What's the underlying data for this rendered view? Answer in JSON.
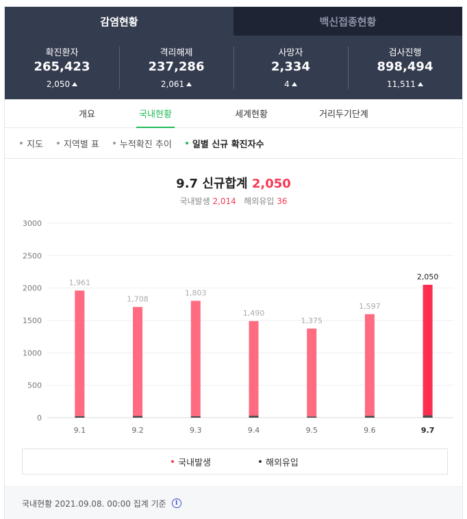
{
  "top_tabs": [
    {
      "label": "감염현황",
      "active": true
    },
    {
      "label": "백신접종현황",
      "active": false
    }
  ],
  "stats": [
    {
      "label": "확진환자",
      "value": "265,423",
      "delta": "2,050"
    },
    {
      "label": "격리해제",
      "value": "237,286",
      "delta": "2,061"
    },
    {
      "label": "사망자",
      "value": "2,334",
      "delta": "4"
    },
    {
      "label": "검사진행",
      "value": "898,494",
      "delta": "11,511"
    }
  ],
  "sub_tabs": [
    {
      "label": "개요"
    },
    {
      "label": "국내현황",
      "active": true
    },
    {
      "label": "세계현황"
    },
    {
      "label": "거리두기단계"
    }
  ],
  "filters": [
    {
      "label": "지도"
    },
    {
      "label": "지역별 표"
    },
    {
      "label": "누적확진 추이"
    },
    {
      "label": "일별 신규 확진자수",
      "active": true
    }
  ],
  "summary": {
    "date": "9.7",
    "title_label": "신규합계",
    "total": "2,050",
    "domestic_label": "국내발생",
    "domestic_value": "2,014",
    "overseas_label": "해외유입",
    "overseas_value": "36"
  },
  "chart_data": {
    "type": "bar",
    "categories": [
      "9.1",
      "9.2",
      "9.3",
      "9.4",
      "9.5",
      "9.6",
      "9.7"
    ],
    "values": [
      1961,
      1708,
      1803,
      1490,
      1375,
      1597,
      2050
    ],
    "value_labels": [
      "1,961",
      "1,708",
      "1,803",
      "1,490",
      "1,375",
      "1,597",
      "2,050"
    ],
    "series": [
      {
        "name": "국내발생",
        "values": [
          1937,
          1682,
          1781,
          1460,
          1357,
          1570,
          2014
        ],
        "color": "#ff6b81"
      },
      {
        "name": "해외유입",
        "values": [
          24,
          26,
          22,
          30,
          18,
          27,
          36
        ],
        "color": "#4a4a4a"
      }
    ],
    "y_ticks": [
      0,
      500,
      1000,
      1500,
      2000,
      2500,
      3000
    ],
    "ylim": [
      0,
      3000
    ],
    "highlight_index": 6,
    "highlight_color": "#ff2d4f",
    "grid": true,
    "legend_position": "bottom"
  },
  "legend": [
    {
      "label": "국내발생",
      "color": "#f53a56"
    },
    {
      "label": "해외유입",
      "color": "#333333"
    }
  ],
  "footer": {
    "text": "국내현황 2021.09.08. 00:00 집계 기준",
    "icon": "info-icon"
  }
}
